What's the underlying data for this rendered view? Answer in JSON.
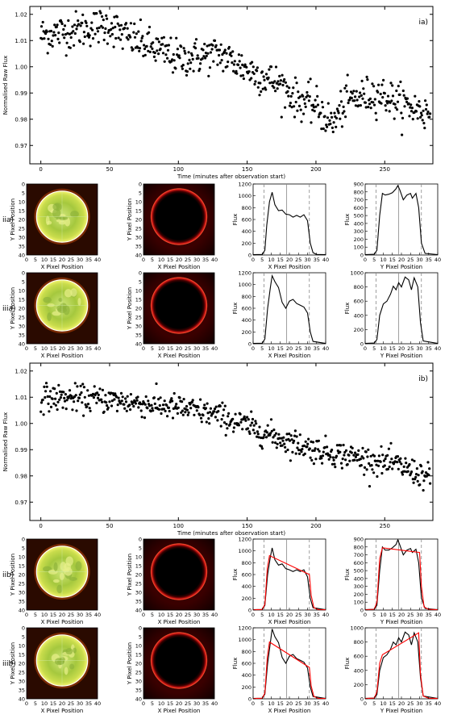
{
  "chart_data": [
    {
      "type": "scatter",
      "panel_label": "ia)",
      "xlabel": "Time (minutes after observation start)",
      "ylabel": "Normalised Raw Flux",
      "xlim": [
        -8,
        285
      ],
      "ylim": [
        0.963,
        1.023
      ],
      "xticks": [
        0,
        50,
        100,
        150,
        200,
        250
      ],
      "yticks": [
        0.97,
        0.98,
        0.99,
        1.0,
        1.01,
        1.02
      ],
      "ytick_labels": [
        "0.97",
        "0.98",
        "0.99",
        "1.00",
        "1.01",
        "1.02"
      ],
      "trend": [
        [
          0,
          1.012
        ],
        [
          50,
          1.016
        ],
        [
          60,
          1.012
        ],
        [
          100,
          1.003
        ],
        [
          130,
          1.005
        ],
        [
          150,
          0.999
        ],
        [
          175,
          0.993
        ],
        [
          185,
          0.988
        ],
        [
          200,
          0.985
        ],
        [
          212,
          0.978
        ],
        [
          222,
          0.987
        ],
        [
          245,
          0.99
        ],
        [
          262,
          0.986
        ],
        [
          283,
          0.982
        ]
      ],
      "scatter": 0.0035
    },
    {
      "type": "scatter",
      "panel_label": "ib)",
      "xlabel": "Time (minutes after observation start)",
      "ylabel": "Normalised Raw Flux",
      "xlim": [
        -8,
        285
      ],
      "ylim": [
        0.963,
        1.023
      ],
      "xticks": [
        0,
        50,
        100,
        150,
        200,
        250
      ],
      "yticks": [
        0.97,
        0.98,
        0.99,
        1.0,
        1.01,
        1.02
      ],
      "ytick_labels": [
        "0.97",
        "0.98",
        "0.99",
        "1.00",
        "1.01",
        "1.02"
      ],
      "trend": [
        [
          0,
          1.01
        ],
        [
          50,
          1.009
        ],
        [
          100,
          1.006
        ],
        [
          130,
          1.003
        ],
        [
          150,
          0.999
        ],
        [
          175,
          0.994
        ],
        [
          200,
          0.99
        ],
        [
          230,
          0.987
        ],
        [
          260,
          0.984
        ],
        [
          283,
          0.979
        ]
      ],
      "scatter": 0.0025
    }
  ],
  "image_axes": {
    "xlabel": "X Pixel Position",
    "ylabel": "Y Pixel Position",
    "ticks": [
      0,
      5,
      10,
      15,
      20,
      25,
      30,
      35,
      40
    ],
    "xtick_labels": [
      "0",
      "5",
      "10",
      "15",
      "20",
      "25",
      "30",
      "35",
      "40"
    ],
    "ytick_labels": [
      "0",
      "5",
      "10",
      "15",
      "20",
      "25",
      "30",
      "35",
      "40"
    ]
  },
  "rows": [
    {
      "label": "iia)",
      "x_profile": {
        "xlabel": "X Pixel Position",
        "ylabel": "Flux",
        "yticks": [
          0,
          200,
          400,
          600,
          800,
          1000,
          1200
        ],
        "ymax": 1200,
        "profile": [
          [
            0,
            5
          ],
          [
            5,
            10
          ],
          [
            6.5,
            80
          ],
          [
            7.5,
            500
          ],
          [
            9,
            900
          ],
          [
            10.5,
            1060
          ],
          [
            12,
            850
          ],
          [
            14,
            750
          ],
          [
            16,
            760
          ],
          [
            18,
            690
          ],
          [
            20,
            680
          ],
          [
            22,
            640
          ],
          [
            24,
            670
          ],
          [
            26,
            640
          ],
          [
            28,
            680
          ],
          [
            30,
            580
          ],
          [
            31.5,
            200
          ],
          [
            33,
            40
          ],
          [
            35,
            10
          ],
          [
            40,
            5
          ]
        ],
        "fit": null
      },
      "y_profile": {
        "xlabel": "Y Pixel Position",
        "ylabel": "Flux",
        "yticks": [
          0,
          100,
          200,
          300,
          400,
          500,
          600,
          700,
          800,
          900
        ],
        "ymax": 900,
        "profile": [
          [
            0,
            5
          ],
          [
            5,
            10
          ],
          [
            6.5,
            60
          ],
          [
            8,
            500
          ],
          [
            9.5,
            780
          ],
          [
            11,
            760
          ],
          [
            13,
            770
          ],
          [
            15,
            790
          ],
          [
            17,
            840
          ],
          [
            18,
            880
          ],
          [
            19,
            830
          ],
          [
            21,
            700
          ],
          [
            23,
            760
          ],
          [
            25,
            780
          ],
          [
            26,
            720
          ],
          [
            28,
            780
          ],
          [
            29.5,
            600
          ],
          [
            31,
            150
          ],
          [
            33,
            20
          ],
          [
            40,
            5
          ]
        ],
        "fit": null
      },
      "circle": "white"
    },
    {
      "label": "iiia)",
      "x_profile": {
        "xlabel": "X Pixel Position",
        "ylabel": "Flux",
        "yticks": [
          0,
          200,
          400,
          600,
          800,
          1000,
          1200
        ],
        "ymax": 1200,
        "profile": [
          [
            0,
            5
          ],
          [
            5,
            10
          ],
          [
            6.5,
            80
          ],
          [
            8,
            600
          ],
          [
            9.5,
            950
          ],
          [
            10.5,
            1150
          ],
          [
            12,
            1050
          ],
          [
            14,
            950
          ],
          [
            16,
            700
          ],
          [
            18,
            600
          ],
          [
            20,
            720
          ],
          [
            22,
            750
          ],
          [
            24,
            680
          ],
          [
            26,
            650
          ],
          [
            28,
            620
          ],
          [
            30,
            520
          ],
          [
            31.5,
            200
          ],
          [
            33,
            40
          ],
          [
            40,
            5
          ]
        ],
        "fit": null
      },
      "y_profile": {
        "xlabel": "Y Pixel Position",
        "ylabel": "Flux",
        "yticks": [
          0,
          200,
          400,
          600,
          800,
          1000
        ],
        "ymax": 1000,
        "profile": [
          [
            0,
            5
          ],
          [
            5,
            10
          ],
          [
            6.5,
            60
          ],
          [
            8,
            400
          ],
          [
            10,
            560
          ],
          [
            12,
            600
          ],
          [
            14,
            700
          ],
          [
            15.5,
            810
          ],
          [
            17,
            760
          ],
          [
            18.5,
            860
          ],
          [
            20,
            800
          ],
          [
            22,
            940
          ],
          [
            24,
            900
          ],
          [
            25.5,
            760
          ],
          [
            27,
            930
          ],
          [
            29,
            800
          ],
          [
            30.5,
            300
          ],
          [
            32,
            40
          ],
          [
            40,
            5
          ]
        ],
        "fit": null
      },
      "circle": "white"
    },
    {
      "label": "iib)",
      "x_profile": {
        "xlabel": "X Pixel Position",
        "ylabel": "Flux",
        "yticks": [
          0,
          200,
          400,
          600,
          800,
          1000,
          1200
        ],
        "ymax": 1200,
        "profile": [
          [
            0,
            5
          ],
          [
            5,
            10
          ],
          [
            6.5,
            80
          ],
          [
            8,
            600
          ],
          [
            9.5,
            900
          ],
          [
            10.5,
            1050
          ],
          [
            12,
            850
          ],
          [
            14,
            760
          ],
          [
            16,
            780
          ],
          [
            18,
            700
          ],
          [
            20,
            680
          ],
          [
            22,
            650
          ],
          [
            24,
            680
          ],
          [
            26,
            650
          ],
          [
            28,
            680
          ],
          [
            30,
            560
          ],
          [
            31.5,
            200
          ],
          [
            33,
            40
          ],
          [
            40,
            5
          ]
        ],
        "fit": [
          [
            0,
            5
          ],
          [
            5,
            10
          ],
          [
            6.5,
            100
          ],
          [
            7.8,
            700
          ],
          [
            9,
            920
          ],
          [
            31,
            600
          ],
          [
            32,
            250
          ],
          [
            33.5,
            40
          ],
          [
            36,
            8
          ],
          [
            40,
            5
          ]
        ]
      },
      "y_profile": {
        "xlabel": "Y Pixel Position",
        "ylabel": "Flux",
        "yticks": [
          0,
          100,
          200,
          300,
          400,
          500,
          600,
          700,
          800,
          900
        ],
        "ymax": 900,
        "profile": [
          [
            0,
            5
          ],
          [
            5,
            10
          ],
          [
            6.5,
            60
          ],
          [
            8,
            500
          ],
          [
            9.5,
            800
          ],
          [
            11,
            760
          ],
          [
            13,
            760
          ],
          [
            15,
            790
          ],
          [
            17,
            830
          ],
          [
            18,
            890
          ],
          [
            19,
            830
          ],
          [
            21,
            700
          ],
          [
            23,
            760
          ],
          [
            25,
            780
          ],
          [
            26,
            730
          ],
          [
            28,
            770
          ],
          [
            29.5,
            600
          ],
          [
            31,
            150
          ],
          [
            33,
            20
          ],
          [
            40,
            5
          ]
        ],
        "fit": [
          [
            0,
            5
          ],
          [
            5,
            10
          ],
          [
            6.5,
            100
          ],
          [
            8,
            650
          ],
          [
            9.5,
            790
          ],
          [
            30,
            730
          ],
          [
            31,
            300
          ],
          [
            32.5,
            40
          ],
          [
            35,
            8
          ],
          [
            40,
            5
          ]
        ]
      },
      "circle": "white"
    },
    {
      "label": "iiib)",
      "x_profile": {
        "xlabel": "X Pixel Position",
        "ylabel": "Flux",
        "yticks": [
          0,
          200,
          400,
          600,
          800,
          1000,
          1200
        ],
        "ymax": 1200,
        "profile": [
          [
            0,
            5
          ],
          [
            5,
            10
          ],
          [
            6.5,
            80
          ],
          [
            8,
            600
          ],
          [
            9.5,
            950
          ],
          [
            10.5,
            1180
          ],
          [
            12,
            1050
          ],
          [
            14,
            950
          ],
          [
            16,
            700
          ],
          [
            18,
            600
          ],
          [
            20,
            720
          ],
          [
            22,
            750
          ],
          [
            24,
            680
          ],
          [
            26,
            650
          ],
          [
            28,
            620
          ],
          [
            30,
            520
          ],
          [
            31.5,
            200
          ],
          [
            33,
            40
          ],
          [
            40,
            5
          ]
        ],
        "fit": [
          [
            0,
            5
          ],
          [
            5,
            10
          ],
          [
            6.5,
            100
          ],
          [
            7.8,
            700
          ],
          [
            9,
            960
          ],
          [
            31,
            530
          ],
          [
            32,
            220
          ],
          [
            33.5,
            40
          ],
          [
            36,
            8
          ],
          [
            40,
            5
          ]
        ]
      },
      "y_profile": {
        "xlabel": "Y Pixel Position",
        "ylabel": "Flux",
        "yticks": [
          0,
          200,
          400,
          600,
          800,
          1000
        ],
        "ymax": 1000,
        "profile": [
          [
            0,
            5
          ],
          [
            5,
            10
          ],
          [
            6.5,
            60
          ],
          [
            8,
            400
          ],
          [
            10,
            580
          ],
          [
            12,
            620
          ],
          [
            14,
            700
          ],
          [
            15.5,
            800
          ],
          [
            17,
            760
          ],
          [
            18.5,
            860
          ],
          [
            20,
            800
          ],
          [
            22,
            940
          ],
          [
            24,
            900
          ],
          [
            25.5,
            760
          ],
          [
            27,
            930
          ],
          [
            29,
            800
          ],
          [
            30.5,
            300
          ],
          [
            32,
            40
          ],
          [
            40,
            5
          ]
        ],
        "fit": [
          [
            0,
            5
          ],
          [
            5,
            10
          ],
          [
            6.5,
            100
          ],
          [
            8,
            500
          ],
          [
            9.5,
            620
          ],
          [
            29.5,
            930
          ],
          [
            30.5,
            350
          ],
          [
            32,
            40
          ],
          [
            35,
            8
          ],
          [
            40,
            5
          ]
        ]
      },
      "circle": "white"
    }
  ],
  "colors": {
    "fit_line": "#ff0000",
    "marker": "#000000",
    "circle": "#ffffff"
  },
  "profile_markers": {
    "dashed": [
      6,
      31
    ],
    "solid": [
      18.5
    ]
  }
}
